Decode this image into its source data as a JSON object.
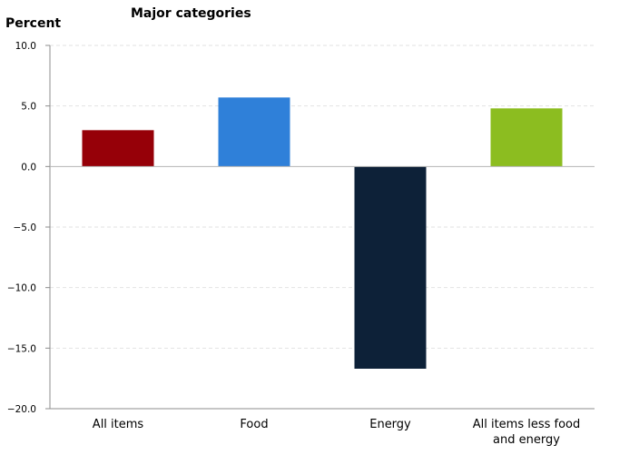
{
  "chart_data": {
    "type": "bar",
    "title": "Major categories",
    "ylabel": "Percent",
    "xlabel": "",
    "ylim": [
      -20,
      10
    ],
    "yticks": [
      10,
      5,
      0,
      -5,
      -10,
      -15,
      -20
    ],
    "ytick_labels": [
      "10.0",
      "5.0",
      "0.0",
      "−5.0",
      "−10.0",
      "−15.0",
      "−20.0"
    ],
    "grid": true,
    "categories": [
      [
        "All items"
      ],
      [
        "Food"
      ],
      [
        "Energy"
      ],
      [
        "All items less food",
        "and energy"
      ]
    ],
    "values": [
      3.0,
      5.7,
      -16.7,
      4.8
    ],
    "colors": [
      "#960008",
      "#2f80d9",
      "#0d2138",
      "#8cbd20"
    ]
  }
}
